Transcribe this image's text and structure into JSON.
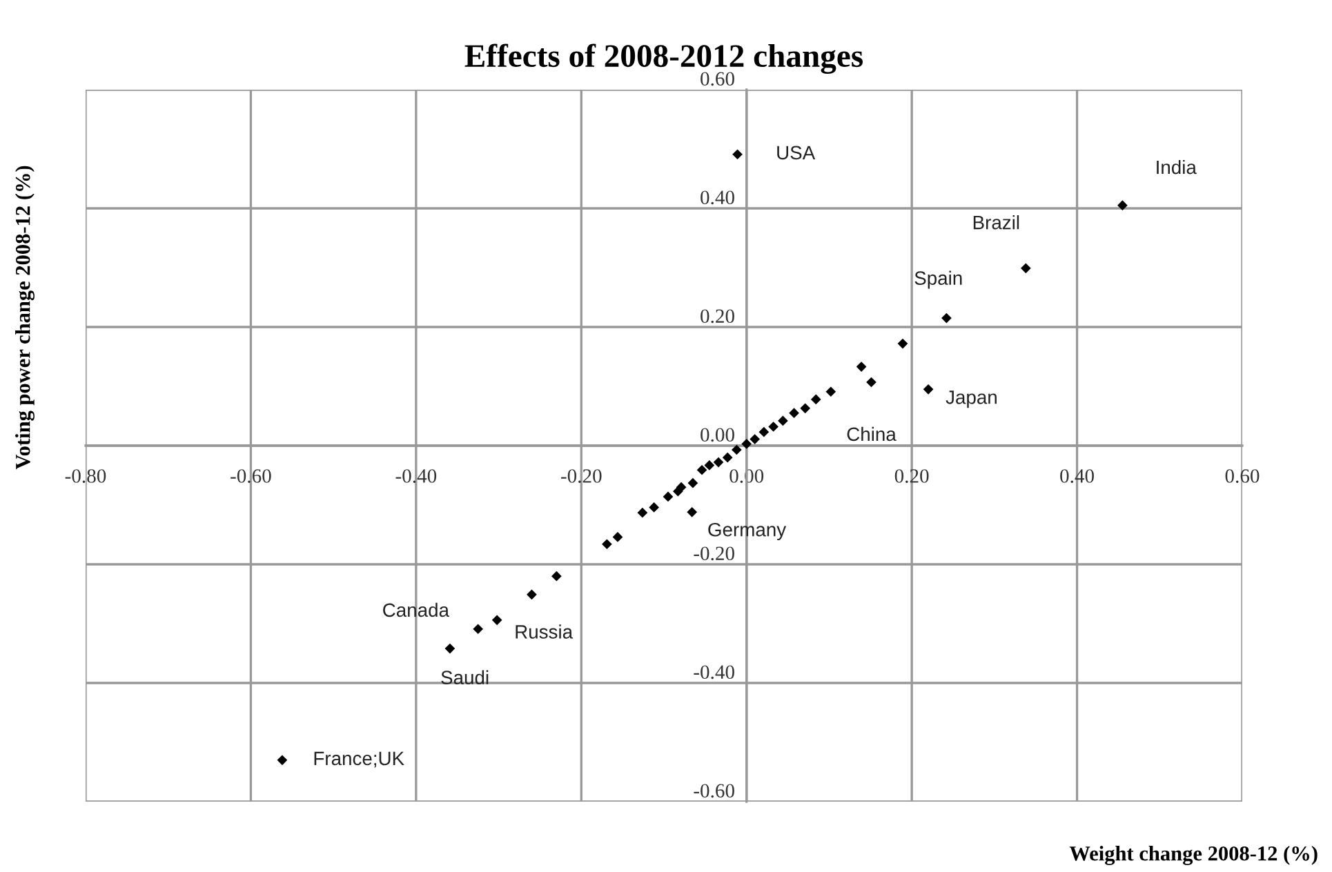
{
  "chart_data": {
    "type": "scatter",
    "title": "Effects of 2008-2012 changes",
    "xlabel": "Weight change 2008-12 (%)",
    "ylabel": "Voting power change 2008-12 (%)",
    "x": [
      -0.011,
      0.455,
      0.338,
      0.242,
      0.189,
      0.139,
      0.151,
      0.22,
      0.102,
      0.084,
      0.071,
      0.0575,
      0.044,
      0.0325,
      0.021,
      0.01,
      0.0,
      -0.012,
      -0.023,
      -0.034,
      -0.045,
      -0.054,
      -0.065,
      -0.079,
      -0.083,
      -0.095,
      -0.112,
      -0.126,
      -0.066,
      -0.156,
      -0.169,
      -0.23,
      -0.26,
      -0.302,
      -0.325,
      -0.359,
      -0.562
    ],
    "values": [
      0.491,
      0.405,
      0.299,
      0.215,
      0.172,
      0.133,
      0.107,
      0.095,
      0.091,
      0.078,
      0.063,
      0.055,
      0.042,
      0.032,
      0.023,
      0.011,
      0.003,
      -0.007,
      -0.02,
      -0.028,
      -0.033,
      -0.041,
      -0.063,
      -0.07,
      -0.077,
      -0.086,
      -0.104,
      -0.113,
      -0.112,
      -0.154,
      -0.166,
      -0.22,
      -0.251,
      -0.294,
      -0.309,
      -0.342,
      -0.53
    ],
    "color": "#000000",
    "marker": "diamond",
    "grid": true,
    "xlim": [
      -0.8,
      0.6
    ],
    "xticks": [
      {
        "value": -0.8,
        "label": "-0.80"
      },
      {
        "value": -0.6,
        "label": "-0.60"
      },
      {
        "value": -0.4,
        "label": "-0.40"
      },
      {
        "value": -0.2,
        "label": "-0.20"
      },
      {
        "value": 0,
        "label": "0.00"
      },
      {
        "value": 0.2,
        "label": "0.20"
      },
      {
        "value": 0.4,
        "label": "0.40"
      },
      {
        "value": 0.6,
        "label": "0.60"
      }
    ],
    "ylim": [
      -0.6,
      0.6
    ],
    "yticks": [
      {
        "value": -0.6,
        "label": "-0.60"
      },
      {
        "value": -0.4,
        "label": "-0.40"
      },
      {
        "value": -0.2,
        "label": "-0.20"
      },
      {
        "value": 0,
        "label": "0.00"
      },
      {
        "value": 0.2,
        "label": "0.20"
      },
      {
        "value": 0.4,
        "label": "0.40"
      },
      {
        "value": 0.6,
        "label": "0.60"
      }
    ],
    "annotations": [
      {
        "text": "USA",
        "x": -0.011,
        "y": 0.491
      },
      {
        "text": "India",
        "x": 0.455,
        "y": 0.405
      },
      {
        "text": "Brazil",
        "x": 0.338,
        "y": 0.299
      },
      {
        "text": "Spain",
        "x": 0.242,
        "y": 0.215
      },
      {
        "text": "Japan",
        "x": 0.22,
        "y": 0.095
      },
      {
        "text": "China",
        "x": 0.151,
        "y": 0.107
      },
      {
        "text": "Germany",
        "x": -0.066,
        "y": -0.112
      },
      {
        "text": "Canada",
        "x": -0.325,
        "y": -0.309
      },
      {
        "text": "Russia",
        "x": -0.302,
        "y": -0.294
      },
      {
        "text": "Saudi",
        "x": -0.359,
        "y": -0.342
      },
      {
        "text": "France;UK",
        "x": -0.562,
        "y": -0.53
      }
    ]
  }
}
